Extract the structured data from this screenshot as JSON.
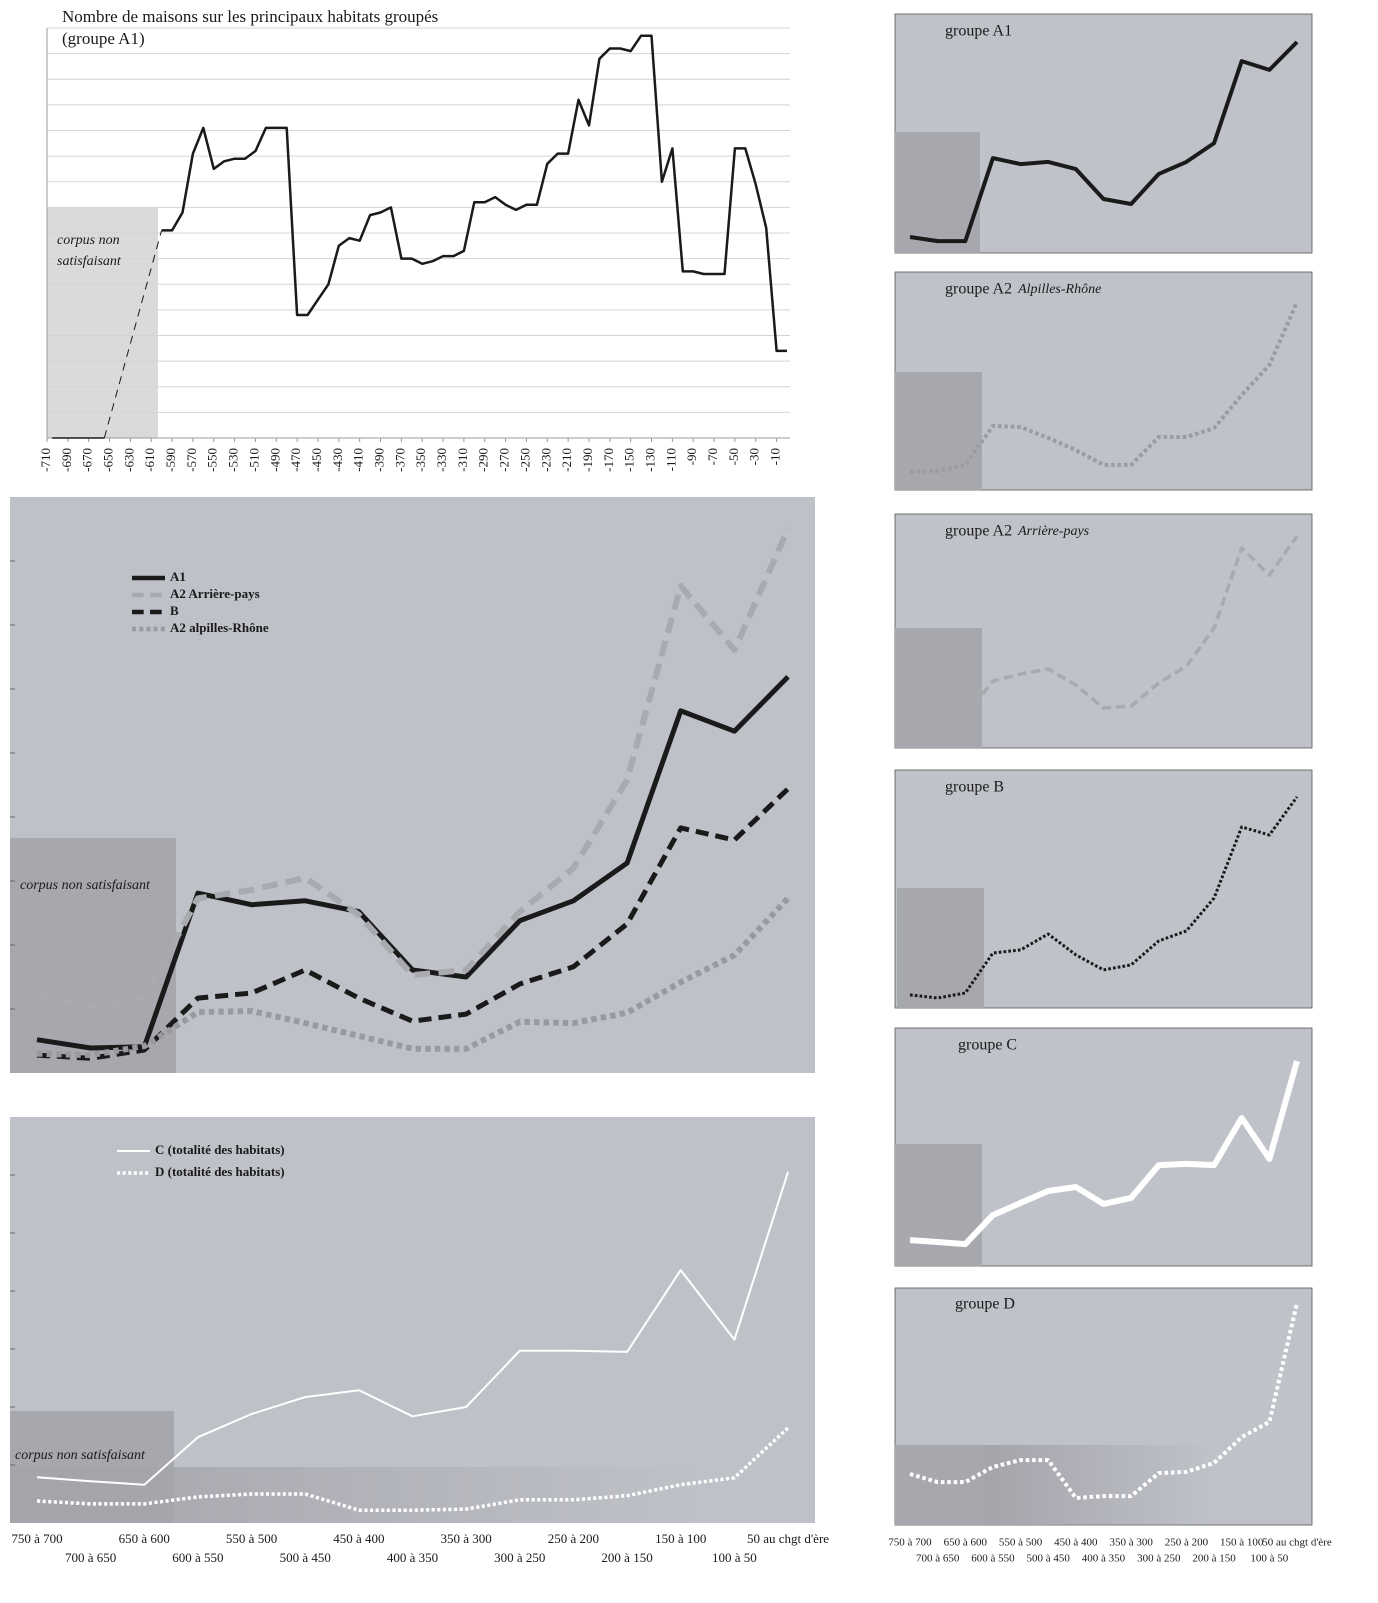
{
  "chart_data": [
    {
      "type": "line",
      "title": "Nombre de maisons sur les principaux habitats groupés",
      "subtitle": "(groupe A1)",
      "annotation": [
        "corpus non",
        "satisfaisant"
      ],
      "xlim": [
        -710,
        0
      ],
      "xticks": [
        -710,
        -690,
        -670,
        -650,
        -630,
        -610,
        -590,
        -570,
        -550,
        -530,
        -510,
        -490,
        -470,
        -450,
        -430,
        -410,
        -390,
        -370,
        -350,
        -330,
        -310,
        -290,
        -270,
        -250,
        -230,
        -210,
        -190,
        -170,
        -150,
        -130,
        -110,
        -90,
        -70,
        -50,
        -30,
        -10
      ],
      "ylim": [
        0,
        16
      ],
      "yticks": [
        0,
        1,
        2,
        3,
        4,
        5,
        6,
        7,
        8,
        9,
        10,
        11,
        12,
        13,
        14,
        15,
        16
      ],
      "grid": true,
      "series": [
        {
          "color": "#1a1a1a",
          "dash": "solid",
          "width": 1.5,
          "x": [
            -705,
            -655
          ],
          "values": [
            0,
            0
          ]
        },
        {
          "color": "#1a1a1a",
          "dash": "dashed",
          "width": 1,
          "x": [
            -655,
            -600
          ],
          "values": [
            0,
            8.1
          ]
        },
        {
          "color": "#1a1a1a",
          "dash": "solid",
          "width": 2.5,
          "x": [
            -600,
            -590,
            -580,
            -570,
            -560,
            -550,
            -540,
            -530,
            -520,
            -510,
            -500,
            -490,
            -480,
            -470,
            -460,
            -450,
            -440,
            -430,
            -420,
            -410,
            -400,
            -390,
            -380,
            -370,
            -360,
            -350,
            -340,
            -330,
            -320,
            -310,
            -300,
            -290,
            -280,
            -270,
            -260,
            -250,
            -240,
            -230,
            -220,
            -210,
            -200,
            -190,
            -180,
            -170,
            -160,
            -150,
            -140,
            -130,
            -120,
            -110,
            -100,
            -90,
            -80,
            -70,
            -60,
            -50,
            -40,
            -30,
            -20,
            -10,
            0
          ],
          "values": [
            8.1,
            8.1,
            8.8,
            11.1,
            12.1,
            10.5,
            10.8,
            10.9,
            10.9,
            11.2,
            12.1,
            12.1,
            12.1,
            4.8,
            4.8,
            5.4,
            6.0,
            7.5,
            7.8,
            7.7,
            8.7,
            8.8,
            9.0,
            7.0,
            7.0,
            6.8,
            6.9,
            7.1,
            7.1,
            7.3,
            9.2,
            9.2,
            9.4,
            9.1,
            8.9,
            9.1,
            9.1,
            10.7,
            11.1,
            11.1,
            13.2,
            12.2,
            14.8,
            15.2,
            15.2,
            15.1,
            15.7,
            15.7,
            10.0,
            11.3,
            6.5,
            6.5,
            6.4,
            6.4,
            6.4,
            11.3,
            11.3,
            9.9,
            8.2,
            3.4,
            3.4
          ]
        }
      ]
    },
    {
      "type": "line",
      "annotation": "corpus non satisfaisant",
      "legend": "upper left",
      "ylim": [
        0,
        9
      ],
      "yticks": [
        1,
        2,
        3,
        4,
        5,
        6,
        7,
        8
      ],
      "series": [
        {
          "name": "A1",
          "color": "#1a1a1a",
          "dash": "solid",
          "width": 5,
          "values": [
            0.52,
            0.39,
            0.41,
            2.81,
            2.63,
            2.69,
            2.52,
            1.61,
            1.5,
            2.38,
            2.69,
            3.28,
            5.66,
            5.34,
            6.19
          ]
        },
        {
          "name": "A2 Arrière-pays",
          "color": "#a8aab0",
          "dash": "dashed",
          "width": 6,
          "values": [
            1.22,
            1.03,
            1.17,
            2.73,
            2.86,
            3.05,
            2.47,
            1.53,
            1.61,
            2.52,
            3.2,
            4.58,
            7.61,
            6.61,
            8.5
          ]
        },
        {
          "name": "B",
          "color": "#1a1a1a",
          "dash": "dashed",
          "width": 5,
          "values": [
            0.28,
            0.23,
            0.36,
            1.17,
            1.25,
            1.61,
            1.17,
            0.81,
            0.92,
            1.39,
            1.66,
            2.33,
            3.83,
            3.64,
            4.44
          ]
        },
        {
          "name": "A2 alpilles-Rhône",
          "color": "#989aa0",
          "dash": "dotted",
          "width": 6,
          "values": [
            0.3,
            0.28,
            0.42,
            0.95,
            0.97,
            0.78,
            0.58,
            0.38,
            0.38,
            0.8,
            0.78,
            0.94,
            1.42,
            1.84,
            2.73
          ]
        }
      ]
    },
    {
      "type": "line",
      "annotation": "corpus non satisfaisant",
      "legend": "upper left",
      "categories": [
        "750 à 700",
        "700 à 650",
        "650 à 600",
        "600 à 550",
        "550 à 500",
        "500 à 450",
        "450 à 400",
        "400 à 350",
        "350 à 300",
        "300 à 250",
        "250 à 200",
        "200 à 150",
        "150 à 100",
        "100 à 50",
        "50 au chgt d'ère"
      ],
      "ylim": [
        0,
        7
      ],
      "yticks": [
        1,
        2,
        3,
        4,
        5,
        6
      ],
      "series": [
        {
          "name": "C (totalité des habitats)",
          "color": "#ffffff",
          "dash": "solid",
          "width": 2,
          "values": [
            0.79,
            0.72,
            0.66,
            1.48,
            1.88,
            2.17,
            2.29,
            1.84,
            2.0,
            2.97,
            2.97,
            2.95,
            4.36,
            3.16,
            6.05
          ]
        },
        {
          "name": "D (totalité des habitats)",
          "color": "#ffffff",
          "dash": "dotted",
          "width": 3.5,
          "values": [
            0.38,
            0.33,
            0.33,
            0.45,
            0.5,
            0.5,
            0.22,
            0.22,
            0.24,
            0.4,
            0.4,
            0.47,
            0.66,
            0.78,
            1.64
          ]
        }
      ]
    },
    {
      "type": "line",
      "title": "groupe A1",
      "ylim": [
        0,
        10
      ],
      "series": [
        {
          "color": "#1a1a1a",
          "dash": "solid",
          "width": 4,
          "values": [
            0.67,
            0.5,
            0.5,
            3.97,
            3.72,
            3.81,
            3.51,
            2.26,
            2.05,
            3.31,
            3.81,
            4.6,
            8.03,
            7.66,
            8.83
          ]
        }
      ]
    },
    {
      "type": "line",
      "title": "groupe A2",
      "title_italic": "Alpilles-Rhône",
      "ylim": [
        0,
        10
      ],
      "series": [
        {
          "color": "#9a9ca2",
          "dash": "dotted",
          "width": 4,
          "values": [
            0.83,
            0.87,
            1.15,
            2.94,
            2.89,
            2.39,
            1.83,
            1.15,
            1.15,
            2.43,
            2.43,
            2.84,
            4.36,
            5.73,
            8.62
          ]
        }
      ]
    },
    {
      "type": "line",
      "title": "groupe A2",
      "title_italic": "Arrière-pays",
      "ylim": [
        0,
        10
      ],
      "series": [
        {
          "color": "#a8aab0",
          "dash": "dashed",
          "width": 3.5,
          "values": [
            1.37,
            1.15,
            1.37,
            2.86,
            3.16,
            3.38,
            2.69,
            1.71,
            1.79,
            2.78,
            3.5,
            5.13,
            8.55,
            7.39,
            9.06
          ]
        }
      ]
    },
    {
      "type": "line",
      "title": "groupe B",
      "ylim": [
        0,
        10
      ],
      "series": [
        {
          "color": "#1a1a1a",
          "dash": "dotted",
          "width": 3,
          "values": [
            0.55,
            0.42,
            0.63,
            2.31,
            2.44,
            3.11,
            2.23,
            1.6,
            1.81,
            2.82,
            3.24,
            4.62,
            7.61,
            7.27,
            8.87
          ]
        }
      ]
    },
    {
      "type": "line",
      "title": "groupe C",
      "ylim": [
        0,
        10
      ],
      "series": [
        {
          "color": "#ffffff",
          "dash": "solid",
          "width": 6,
          "values": [
            1.09,
            1.01,
            0.92,
            2.14,
            2.65,
            3.15,
            3.32,
            2.61,
            2.86,
            4.24,
            4.29,
            4.24,
            6.22,
            4.5,
            8.61
          ]
        }
      ]
    },
    {
      "type": "line",
      "title": "groupe D",
      "ylim": [
        0,
        10
      ],
      "categories": [
        "750 à 700",
        "700 à 650",
        "650 à 600",
        "600 à 550",
        "550 à 500",
        "500 à 450",
        "450 à 400",
        "400 à 350",
        "350 à 300",
        "300 à 250",
        "250 à 200",
        "200 à 150",
        "150 à 100",
        "100 à 50",
        "50 au chgt d'ère"
      ],
      "series": [
        {
          "color": "#ffffff",
          "dash": "dotted",
          "width": 4,
          "values": [
            2.15,
            1.81,
            1.81,
            2.45,
            2.74,
            2.74,
            1.14,
            1.22,
            1.22,
            2.19,
            2.24,
            2.62,
            3.71,
            4.35,
            9.37
          ]
        }
      ]
    }
  ]
}
